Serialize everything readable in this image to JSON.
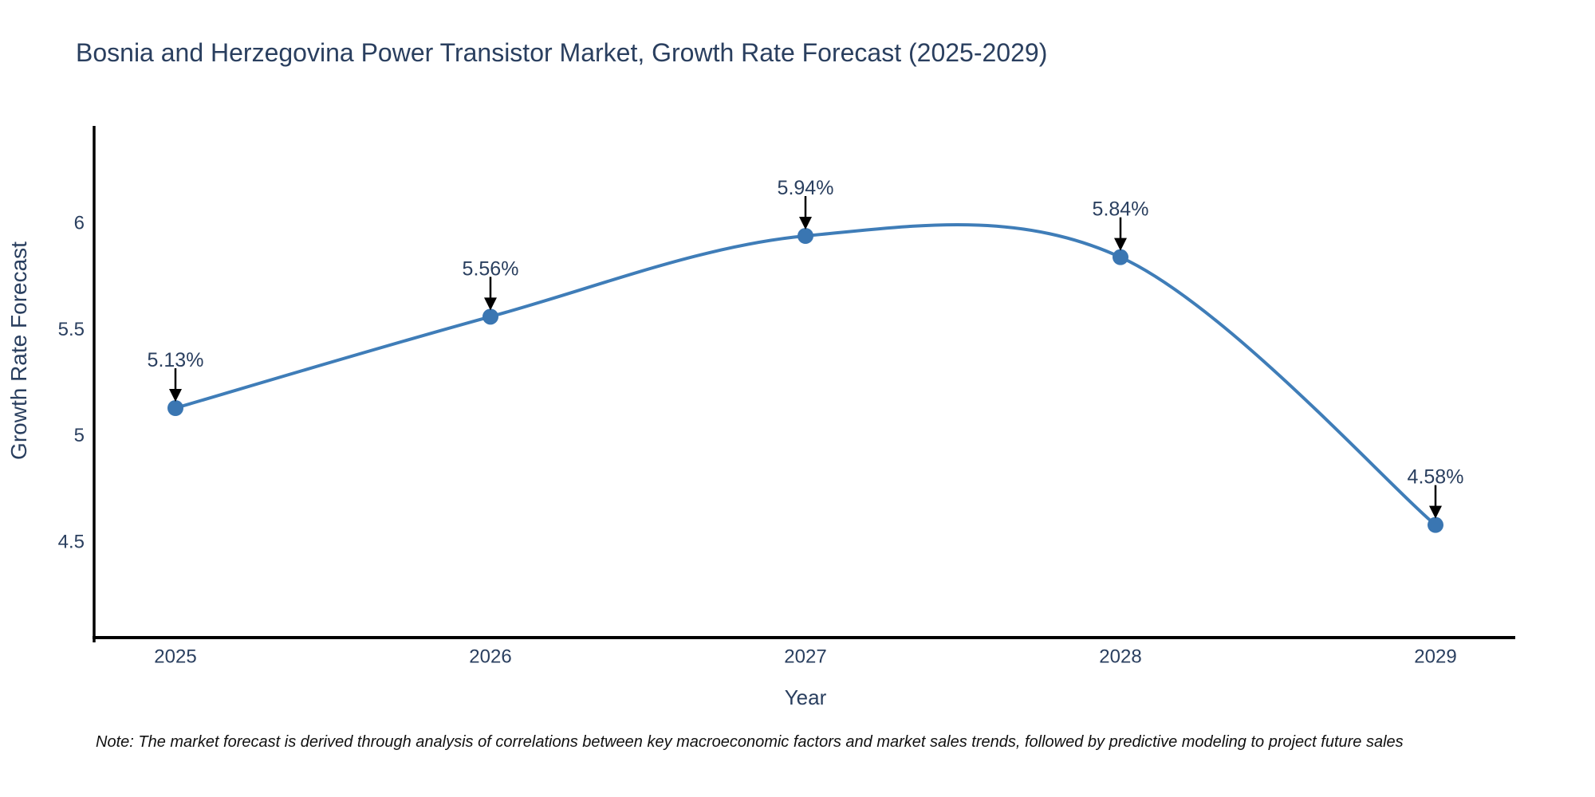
{
  "page": {
    "title": "Bosnia and Herzegovina Power Transistor Market, Growth Rate Forecast (2025-2029)",
    "note": "Note: The market forecast is derived through analysis of correlations between key macroeconomic factors and market sales trends, followed by predictive modeling to project future sales"
  },
  "chart_data": {
    "type": "line",
    "title": "Bosnia and Herzegovina Power Transistor Market, Growth Rate Forecast (2025-2029)",
    "xlabel": "Year",
    "ylabel": "Growth Rate Forecast",
    "categories": [
      "2025",
      "2026",
      "2027",
      "2028",
      "2029"
    ],
    "series": [
      {
        "name": "Growth Rate Forecast",
        "values": [
          5.13,
          5.56,
          5.94,
          5.84,
          4.58
        ]
      }
    ],
    "point_labels": [
      "5.13%",
      "5.56%",
      "5.94%",
      "5.84%",
      "4.58%"
    ],
    "ytick_labels": [
      "4.5",
      "5",
      "5.5",
      "6"
    ],
    "ytick_values": [
      4.5,
      5,
      5.5,
      6
    ],
    "ylim": [
      4.05,
      6.45
    ],
    "grid": false,
    "legend_position": "none",
    "curve": "smooth-spline",
    "annotation_style": "value-label-with-down-arrow",
    "colors": {
      "line": "#3f7db8",
      "marker": "#3a76b2",
      "axis": "#000000",
      "text": "#2a3f5f",
      "annotation_text": "#2a3f5f",
      "annotation_arrow": "#000000",
      "background": "#ffffff"
    }
  }
}
